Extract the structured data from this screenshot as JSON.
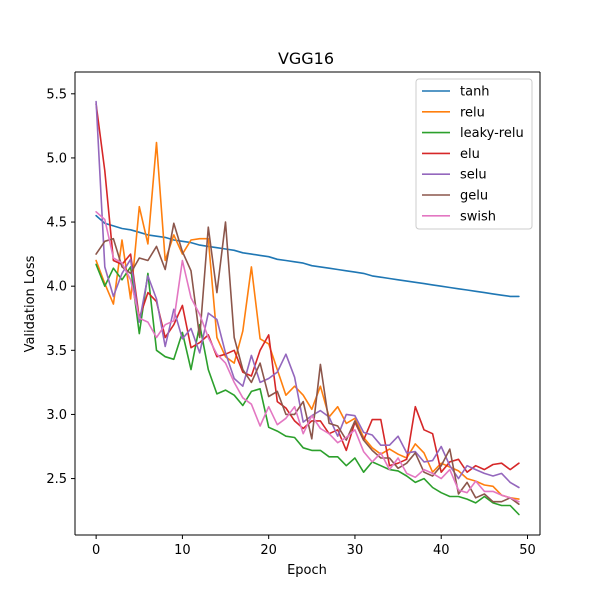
{
  "chart_data": {
    "type": "line",
    "title": "VGG16",
    "xlabel": "Epoch",
    "ylabel": "Validation Loss",
    "xlim": [
      -2.45,
      51.45
    ],
    "ylim": [
      2.06,
      5.67
    ],
    "xticks": [
      0,
      10,
      20,
      30,
      40,
      50
    ],
    "yticks": [
      2.5,
      3.0,
      3.5,
      4.0,
      4.5,
      5.0,
      5.5
    ],
    "xtick_labels": [
      "0",
      "10",
      "20",
      "30",
      "40",
      "50"
    ],
    "ytick_labels": [
      "2.5",
      "3.0",
      "3.5",
      "4.0",
      "4.5",
      "5.0",
      "5.5"
    ],
    "grid": false,
    "legend_position": "top-right",
    "x": [
      0,
      1,
      2,
      3,
      4,
      5,
      6,
      7,
      8,
      9,
      10,
      11,
      12,
      13,
      14,
      15,
      16,
      17,
      18,
      19,
      20,
      21,
      22,
      23,
      24,
      25,
      26,
      27,
      28,
      29,
      30,
      31,
      32,
      33,
      34,
      35,
      36,
      37,
      38,
      39,
      40,
      41,
      42,
      43,
      44,
      45,
      46,
      47,
      48,
      49
    ],
    "series": [
      {
        "name": "tanh",
        "color": "#1f77b4",
        "values": [
          4.55,
          4.49,
          4.47,
          4.45,
          4.44,
          4.42,
          4.4,
          4.39,
          4.38,
          4.36,
          4.35,
          4.34,
          4.32,
          4.31,
          4.3,
          4.29,
          4.28,
          4.26,
          4.25,
          4.24,
          4.23,
          4.21,
          4.2,
          4.19,
          4.18,
          4.16,
          4.15,
          4.14,
          4.13,
          4.12,
          4.11,
          4.1,
          4.08,
          4.07,
          4.06,
          4.05,
          4.04,
          4.03,
          4.02,
          4.01,
          4.0,
          3.99,
          3.98,
          3.97,
          3.96,
          3.95,
          3.94,
          3.93,
          3.92,
          3.92
        ]
      },
      {
        "name": "relu",
        "color": "#ff7f0e",
        "values": [
          4.2,
          4.02,
          3.86,
          4.36,
          3.9,
          4.62,
          4.33,
          5.12,
          4.2,
          4.4,
          4.25,
          4.36,
          4.37,
          4.37,
          3.6,
          3.45,
          3.4,
          3.65,
          4.15,
          3.59,
          3.55,
          3.35,
          3.15,
          3.22,
          3.15,
          3.04,
          3.22,
          2.98,
          3.06,
          2.93,
          2.97,
          2.82,
          2.74,
          2.69,
          2.73,
          2.69,
          2.66,
          2.77,
          2.7,
          2.55,
          2.62,
          2.59,
          2.56,
          2.5,
          2.48,
          2.45,
          2.44,
          2.37,
          2.35,
          2.34
        ]
      },
      {
        "name": "leaky-relu",
        "color": "#2ca02c",
        "values": [
          4.17,
          4.0,
          4.14,
          4.05,
          4.15,
          3.63,
          4.1,
          3.5,
          3.45,
          3.43,
          3.64,
          3.35,
          3.7,
          3.35,
          3.16,
          3.19,
          3.15,
          3.07,
          3.18,
          3.2,
          2.9,
          2.87,
          2.83,
          2.82,
          2.74,
          2.72,
          2.72,
          2.67,
          2.67,
          2.6,
          2.66,
          2.55,
          2.63,
          2.6,
          2.57,
          2.56,
          2.52,
          2.47,
          2.5,
          2.43,
          2.39,
          2.36,
          2.36,
          2.34,
          2.31,
          2.36,
          2.31,
          2.29,
          2.29,
          2.22
        ]
      },
      {
        "name": "elu",
        "color": "#d62728",
        "values": [
          5.42,
          4.9,
          4.2,
          4.17,
          4.25,
          3.75,
          3.95,
          3.88,
          3.6,
          3.7,
          3.85,
          3.52,
          3.56,
          3.62,
          3.45,
          3.47,
          3.5,
          3.33,
          3.3,
          3.5,
          3.62,
          3.1,
          3.05,
          2.95,
          2.89,
          2.95,
          2.95,
          2.85,
          2.88,
          2.72,
          2.94,
          2.8,
          2.96,
          2.96,
          2.6,
          2.62,
          2.65,
          3.06,
          2.88,
          2.85,
          2.55,
          2.63,
          2.65,
          2.55,
          2.6,
          2.57,
          2.61,
          2.62,
          2.57,
          2.62
        ]
      },
      {
        "name": "selu",
        "color": "#9467bd",
        "values": [
          5.44,
          4.15,
          3.92,
          4.1,
          4.21,
          3.72,
          4.08,
          3.9,
          3.53,
          3.82,
          3.59,
          3.67,
          3.48,
          3.79,
          3.74,
          3.48,
          3.28,
          3.22,
          3.46,
          3.25,
          3.28,
          3.33,
          3.47,
          3.29,
          2.94,
          2.99,
          3.03,
          2.98,
          2.83,
          3.0,
          2.99,
          2.86,
          2.84,
          2.76,
          2.76,
          2.83,
          2.7,
          2.71,
          2.63,
          2.64,
          2.75,
          2.6,
          2.5,
          2.6,
          2.57,
          2.54,
          2.52,
          2.54,
          2.47,
          2.43
        ]
      },
      {
        "name": "gelu",
        "color": "#8c564b",
        "values": [
          4.25,
          4.35,
          4.37,
          4.15,
          4.1,
          4.22,
          4.2,
          4.31,
          4.13,
          4.49,
          4.27,
          4.12,
          3.6,
          4.46,
          3.95,
          4.5,
          3.6,
          3.35,
          3.25,
          3.4,
          3.14,
          3.18,
          3.0,
          3.0,
          3.1,
          2.81,
          3.39,
          2.93,
          2.91,
          2.8,
          2.95,
          2.8,
          2.72,
          2.66,
          2.66,
          2.58,
          2.62,
          2.7,
          2.55,
          2.52,
          2.6,
          2.73,
          2.38,
          2.47,
          2.35,
          2.38,
          2.32,
          2.32,
          2.35,
          2.3
        ]
      },
      {
        "name": "swish",
        "color": "#e377c2",
        "values": [
          4.58,
          4.52,
          4.22,
          4.18,
          4.05,
          3.75,
          3.72,
          3.6,
          3.7,
          3.73,
          4.2,
          3.91,
          3.78,
          3.6,
          3.47,
          3.4,
          3.25,
          3.13,
          3.08,
          2.91,
          3.06,
          2.92,
          2.97,
          3.06,
          2.85,
          2.99,
          2.89,
          2.85,
          2.78,
          2.82,
          2.88,
          2.71,
          2.63,
          2.7,
          2.57,
          2.66,
          2.54,
          2.51,
          2.57,
          2.54,
          2.5,
          2.57,
          2.41,
          2.39,
          2.48,
          2.4,
          2.4,
          2.37,
          2.35,
          2.32
        ]
      }
    ]
  }
}
